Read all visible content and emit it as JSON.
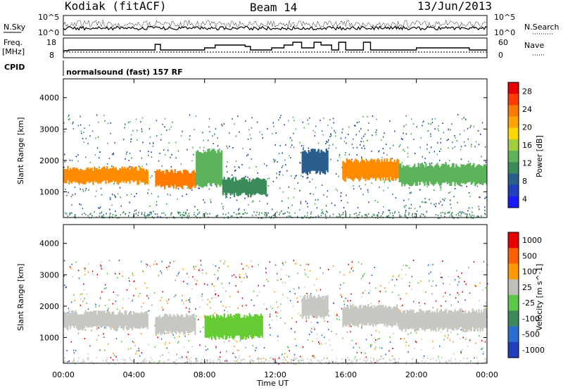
{
  "header": {
    "station": "Kodiak (fitACF)",
    "beam": "Beam 14",
    "date": "13/Jun/2013"
  },
  "panels": {
    "nsky": {
      "left_label": "N.Sky",
      "right_label": "N.Search",
      "left_ticks": [
        "10^5",
        "10^0"
      ],
      "right_ticks": [
        "10^5",
        "10^0"
      ]
    },
    "freq": {
      "left_label_1": "Freq.",
      "left_label_2": "[MHz]",
      "right_label": "Nave",
      "left_ticks": [
        "18",
        "8"
      ],
      "right_ticks": [
        "60",
        "0"
      ]
    },
    "cpid": {
      "label": "CPID",
      "text": "normalsound (fast) 157 RF"
    }
  },
  "x_axis": {
    "label": "Time UT",
    "ticks": [
      "00:00",
      "04:00",
      "08:00",
      "12:00",
      "16:00",
      "20:00",
      "00:00"
    ]
  },
  "chart_data": [
    {
      "type": "heatmap",
      "title": "",
      "quantity": "Power",
      "ylabel": "Slant Range [km]",
      "xlabel": "Time UT",
      "y_ticks": [
        1000,
        2000,
        3000,
        4000
      ],
      "ylim": [
        180,
        4600
      ],
      "xlim_hours": [
        0,
        24
      ],
      "colorbar": {
        "label": "Power [dB]",
        "ticks": [
          4,
          8,
          12,
          16,
          20,
          24,
          28
        ],
        "colors": [
          "#1a1aff",
          "#1f3fbf",
          "#2a5e8c",
          "#3a8a5a",
          "#5cb35c",
          "#9fcf3f",
          "#ffd700",
          "#ffa500",
          "#ff7a00",
          "#ff3b00",
          "#e60000"
        ]
      },
      "bands": [
        {
          "t0": 0.0,
          "t1": 4.8,
          "range": [
            1300,
            1750
          ],
          "color": "#ff8c00"
        },
        {
          "t0": 5.2,
          "t1": 7.5,
          "range": [
            1150,
            1650
          ],
          "color": "#ff7a00"
        },
        {
          "t0": 7.5,
          "t1": 9.0,
          "range": [
            1200,
            2300
          ],
          "color": "#5cb35c"
        },
        {
          "t0": 9.0,
          "t1": 11.5,
          "range": [
            900,
            1400
          ],
          "color": "#3a8a5a"
        },
        {
          "t0": 13.5,
          "t1": 15.0,
          "range": [
            1600,
            2300
          ],
          "color": "#2a5e8c"
        },
        {
          "t0": 15.8,
          "t1": 19.0,
          "range": [
            1400,
            2000
          ],
          "color": "#ff8c00"
        },
        {
          "t0": 19.0,
          "t1": 24.0,
          "range": [
            1250,
            1850
          ],
          "color": "#5cb35c"
        }
      ]
    },
    {
      "type": "heatmap",
      "title": "",
      "quantity": "Velocity",
      "ylabel": "Slant Range [km]",
      "xlabel": "Time UT",
      "y_ticks": [
        1000,
        2000,
        3000,
        4000
      ],
      "ylim": [
        180,
        4600
      ],
      "xlim_hours": [
        0,
        24
      ],
      "colorbar": {
        "label": "Velocity [m s^-1]",
        "ticks": [
          1000,
          500,
          100,
          25,
          -25,
          -100,
          -500,
          -1000
        ],
        "colors": [
          "#1f3fbf",
          "#2a6fcf",
          "#3a8a5a",
          "#5cc84a",
          "#c0c0bb",
          "#ff9a00",
          "#ff6000",
          "#e60000"
        ]
      },
      "bands": [
        {
          "t0": 0.0,
          "t1": 4.8,
          "range": [
            1300,
            1800
          ],
          "color": "#c8c8c3"
        },
        {
          "t0": 5.2,
          "t1": 7.5,
          "range": [
            1150,
            1700
          ],
          "color": "#c8c8c3"
        },
        {
          "t0": 8.0,
          "t1": 11.3,
          "range": [
            1000,
            1700
          ],
          "color": "#66cc33"
        },
        {
          "t0": 13.5,
          "t1": 15.0,
          "range": [
            1650,
            2300
          ],
          "color": "#c8c8c3"
        },
        {
          "t0": 15.8,
          "t1": 19.0,
          "range": [
            1400,
            2000
          ],
          "color": "#c8c8c3"
        },
        {
          "t0": 19.0,
          "t1": 24.0,
          "range": [
            1250,
            1850
          ],
          "color": "#c8c8c3"
        }
      ]
    }
  ]
}
